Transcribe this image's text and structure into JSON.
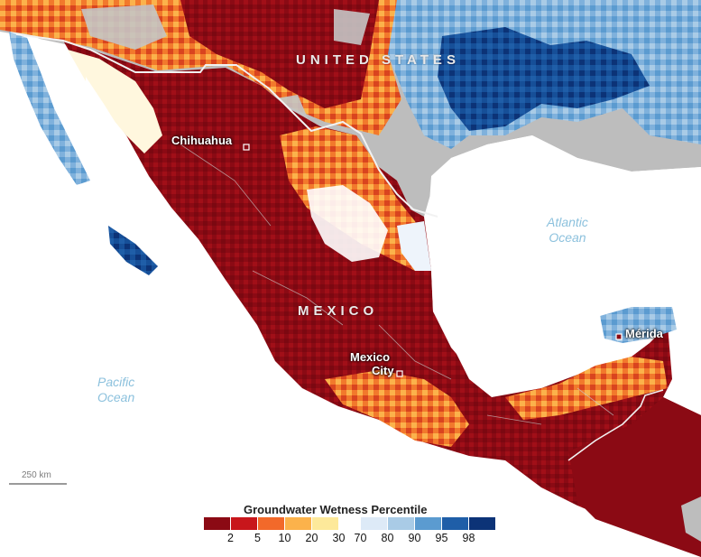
{
  "labels": {
    "country_us": "UNITED STATES",
    "country_mx": "MEXICO",
    "city_chihuahua": "Chihuahua",
    "city_mexico_1": "Mexico",
    "city_mexico_2": "City",
    "city_merida": "Mérida",
    "ocean_atlantic_1": "Atlantic",
    "ocean_atlantic_2": "Ocean",
    "ocean_pacific_1": "Pacific",
    "ocean_pacific_2": "Ocean"
  },
  "scale_bar": {
    "label": "250 km"
  },
  "legend": {
    "title": "Groundwater Wetness Percentile",
    "dry_colors": [
      "#8b0a14",
      "#c8161b",
      "#f2692a",
      "#fbb24b",
      "#fde99a"
    ],
    "wet_colors": [
      "#ddeaf7",
      "#a9cbe6",
      "#5b9bd0",
      "#1f5ea8",
      "#0c3377"
    ],
    "dry_ticks": [
      "2",
      "5",
      "10",
      "20",
      "30"
    ],
    "wet_ticks": [
      "70",
      "80",
      "90",
      "95",
      "98"
    ]
  },
  "colors": {
    "land_gray": "#bdbdbd",
    "water": "#ffffff",
    "border": "#f2f2f2",
    "dry_extreme": "#8b0a14",
    "wet_extreme": "#0c3377"
  }
}
